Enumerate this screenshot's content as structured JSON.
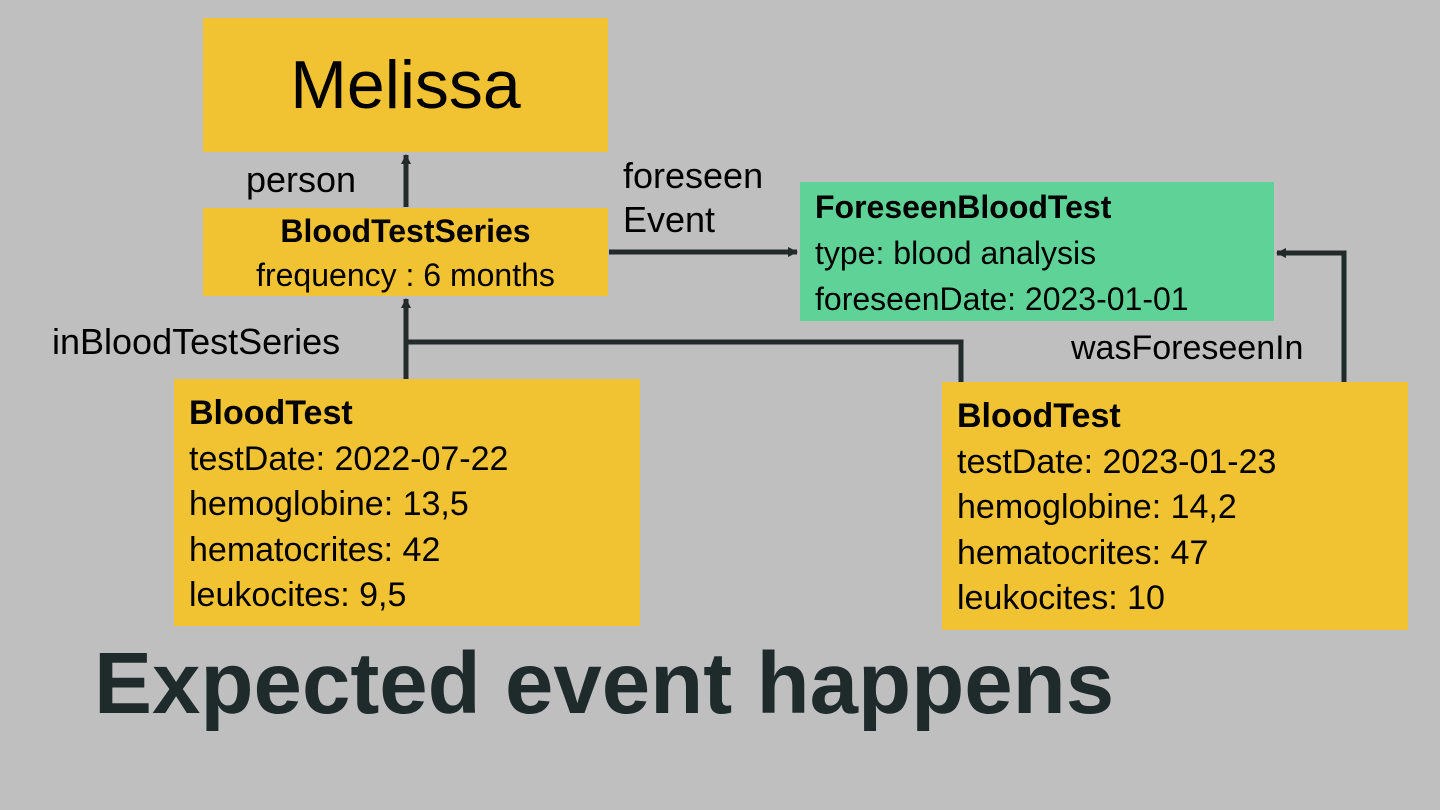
{
  "nodes": {
    "melissa": {
      "name": "Melissa"
    },
    "series": {
      "title": "BloodTestSeries",
      "frequency": "frequency : 6 months"
    },
    "foreseen": {
      "title": "ForeseenBloodTest",
      "type": "type: blood analysis",
      "date": "foreseenDate: 2023-01-01"
    },
    "bloodtest1": {
      "title": "BloodTest",
      "testDate": "testDate: 2022-07-22",
      "hemoglobine": "hemoglobine: 13,5",
      "hematocrites": "hematocrites: 42",
      "leukocites": "leukocites: 9,5"
    },
    "bloodtest2": {
      "title": "BloodTest",
      "testDate": "testDate: 2023-01-23",
      "hemoglobine": "hemoglobine: 14,2",
      "hematocrites": "hematocrites: 47",
      "leukocites": "leukocites: 10"
    }
  },
  "edges": {
    "person": "person",
    "foreseen_line1": "foreseen",
    "foreseen_line2": "Event",
    "inBloodTestSeries": "inBloodTestSeries",
    "wasForeseenIn": "wasForeseenIn"
  },
  "heading": "Expected event happens",
  "colors": {
    "background": "#bfbfbf",
    "entity": "#f1c232",
    "foreseen_entity": "#5fd397",
    "edge": "#222a2a"
  }
}
